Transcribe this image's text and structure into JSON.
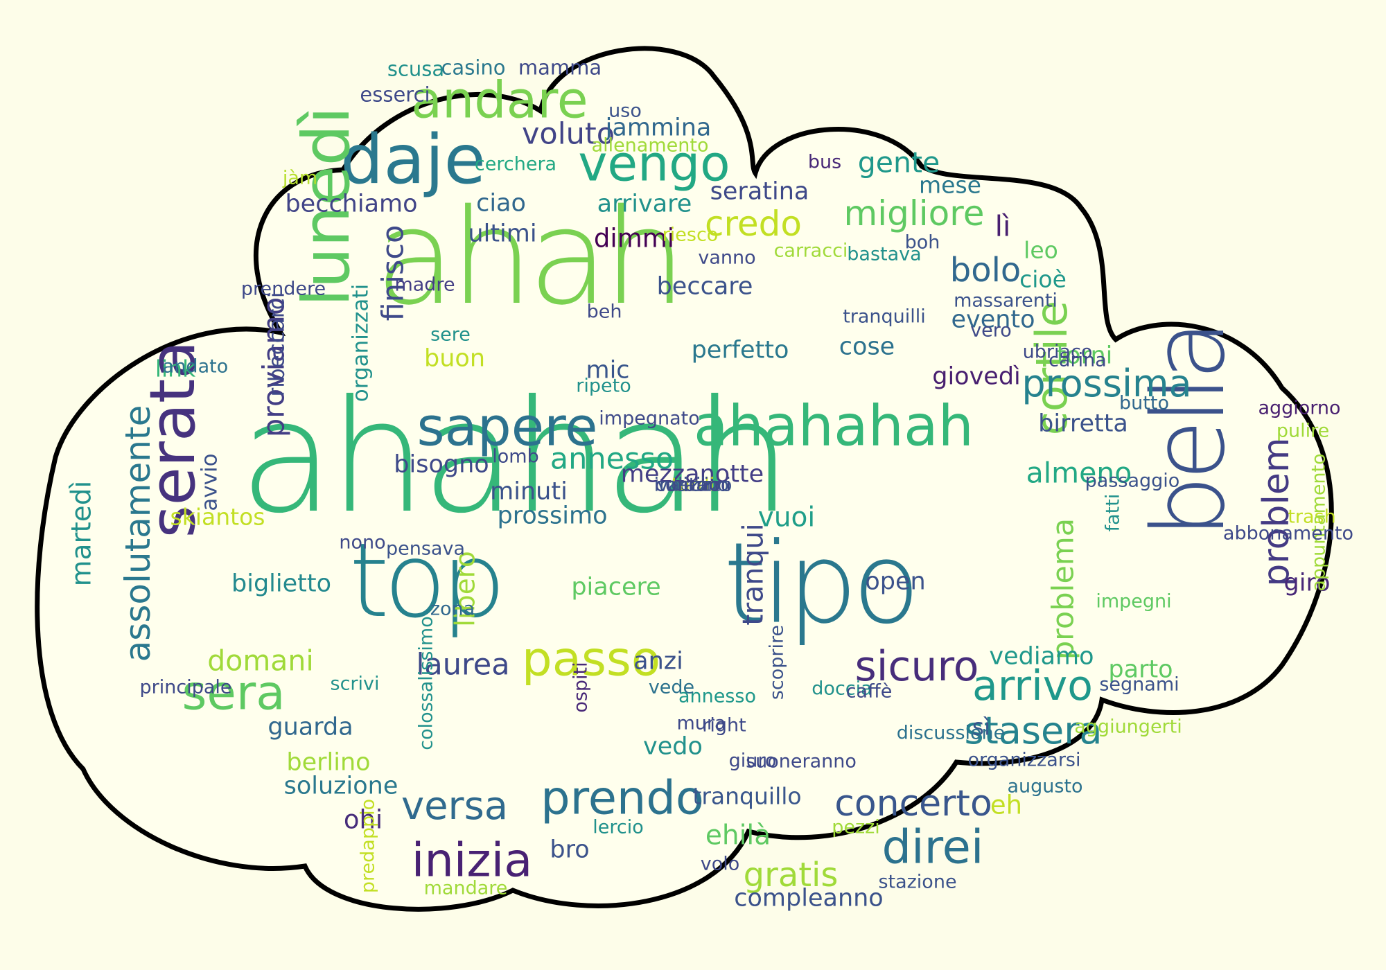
{
  "words": [
    {
      "text": "ahahah",
      "color": "#35b779",
      "weight": 100,
      "rotate": false
    },
    {
      "text": "ahah",
      "color": "#7ad151",
      "weight": 84,
      "rotate": false
    },
    {
      "text": "tipo",
      "color": "#2a788e",
      "weight": 70,
      "rotate": false
    },
    {
      "text": "top",
      "color": "#26828e",
      "weight": 64,
      "rotate": false
    },
    {
      "text": "bella",
      "color": "#3b528b",
      "weight": 62,
      "rotate": true
    },
    {
      "text": "daje",
      "color": "#2a788e",
      "weight": 40,
      "rotate": false
    },
    {
      "text": "lunedì",
      "color": "#5ec962",
      "weight": 38,
      "rotate": true
    },
    {
      "text": "serata",
      "color": "#46327e",
      "weight": 36,
      "rotate": true
    },
    {
      "text": "ahahahah",
      "color": "#35b779",
      "weight": 32,
      "rotate": false
    },
    {
      "text": "sapere",
      "color": "#2c728e",
      "weight": 30,
      "rotate": false
    },
    {
      "text": "andare",
      "color": "#7ad151",
      "weight": 28,
      "rotate": false
    },
    {
      "text": "vengo",
      "color": "#22a884",
      "weight": 27,
      "rotate": false
    },
    {
      "text": "passo",
      "color": "#c2df23",
      "weight": 26,
      "rotate": false
    },
    {
      "text": "sera",
      "color": "#5ec962",
      "weight": 26,
      "rotate": false
    },
    {
      "text": "prendo",
      "color": "#2c728e",
      "weight": 25,
      "rotate": false
    },
    {
      "text": "inizia",
      "color": "#482173",
      "weight": 25,
      "rotate": false
    },
    {
      "text": "direi",
      "color": "#2c728e",
      "weight": 25,
      "rotate": false
    },
    {
      "text": "cortile",
      "color": "#7ad151",
      "weight": 23,
      "rotate": true
    },
    {
      "text": "sicuro",
      "color": "#472d7b",
      "weight": 22,
      "rotate": false
    },
    {
      "text": "arrivo",
      "color": "#1f988b",
      "weight": 22,
      "rotate": false
    },
    {
      "text": "versa",
      "color": "#306a8e",
      "weight": 20,
      "rotate": false
    },
    {
      "text": "stasera",
      "color": "#25838e",
      "weight": 19,
      "rotate": false
    },
    {
      "text": "prossima",
      "color": "#26828e",
      "weight": 19,
      "rotate": false
    },
    {
      "text": "problem",
      "color": "#443a83",
      "weight": 18,
      "rotate": true
    },
    {
      "text": "concerto",
      "color": "#39568c",
      "weight": 18,
      "rotate": false
    },
    {
      "text": "assolutamente",
      "color": "#2a788e",
      "weight": 17,
      "rotate": true
    },
    {
      "text": "credo",
      "color": "#c2df23",
      "weight": 17,
      "rotate": false
    },
    {
      "text": "migliore",
      "color": "#5ec962",
      "weight": 17,
      "rotate": false
    },
    {
      "text": "bolo",
      "color": "#31688e",
      "weight": 16,
      "rotate": false
    },
    {
      "text": "gratis",
      "color": "#a0da39",
      "weight": 16,
      "rotate": false
    },
    {
      "text": "voluto",
      "color": "#414487",
      "weight": 14,
      "rotate": false
    },
    {
      "text": "annesso",
      "color": "#22a884",
      "weight": 14,
      "rotate": false
    },
    {
      "text": "proviamo",
      "color": "#433e85",
      "weight": 14,
      "rotate": true
    },
    {
      "text": "finisco",
      "color": "#3e4989",
      "weight": 14,
      "rotate": true
    },
    {
      "text": "problema",
      "color": "#7ad151",
      "weight": 14,
      "rotate": true
    },
    {
      "text": "laurea",
      "color": "#3e4989",
      "weight": 14,
      "rotate": false
    },
    {
      "text": "domani",
      "color": "#a0da39",
      "weight": 13,
      "rotate": false
    },
    {
      "text": "gente",
      "color": "#1f988b",
      "weight": 13,
      "rotate": false
    },
    {
      "text": "lì",
      "color": "#481f70",
      "weight": 13,
      "rotate": false
    },
    {
      "text": "almeno",
      "color": "#22a884",
      "weight": 13,
      "rotate": false
    },
    {
      "text": "tranqui",
      "color": "#3e4989",
      "weight": 13,
      "rotate": true
    },
    {
      "text": "libero",
      "color": "#a0da39",
      "weight": 12,
      "rotate": true
    },
    {
      "text": "vuoi",
      "color": "#1f9e89",
      "weight": 12,
      "rotate": false
    },
    {
      "text": "ehilà",
      "color": "#5ec962",
      "weight": 12,
      "rotate": false
    },
    {
      "text": "martedì",
      "color": "#21918c",
      "weight": 12,
      "rotate": true
    },
    {
      "text": "eh",
      "color": "#c2df23",
      "weight": 11,
      "rotate": false
    },
    {
      "text": "ohi",
      "color": "#472d7b",
      "weight": 11,
      "rotate": false
    },
    {
      "text": "dimmi",
      "color": "#440154",
      "weight": 11,
      "rotate": false
    },
    {
      "text": "mezzanotte",
      "color": "#433e85",
      "weight": 10,
      "rotate": false
    },
    {
      "text": "minuti",
      "color": "#3b528b",
      "weight": 10,
      "rotate": false
    },
    {
      "text": "prossimo",
      "color": "#2c728e",
      "weight": 10,
      "rotate": false
    },
    {
      "text": "giro",
      "color": "#482878",
      "weight": 10,
      "rotate": false
    },
    {
      "text": "ciao",
      "color": "#31688e",
      "weight": 10,
      "rotate": false
    },
    {
      "text": "seratina",
      "color": "#3e4989",
      "weight": 10,
      "rotate": false
    },
    {
      "text": "jammina",
      "color": "#31688e",
      "weight": 10,
      "rotate": false
    },
    {
      "text": "arrivare",
      "color": "#21918c",
      "weight": 10,
      "rotate": false
    },
    {
      "text": "becchiamo",
      "color": "#414487",
      "weight": 10,
      "rotate": false
    },
    {
      "text": "ultimi",
      "color": "#3b528b",
      "weight": 10,
      "rotate": false
    },
    {
      "text": "beccare",
      "color": "#3b528b",
      "weight": 10,
      "rotate": false
    },
    {
      "text": "guarda",
      "color": "#31688e",
      "weight": 10,
      "rotate": false
    },
    {
      "text": "berlino",
      "color": "#a0da39",
      "weight": 10,
      "rotate": false
    },
    {
      "text": "soluzione",
      "color": "#2a788e",
      "weight": 10,
      "rotate": false
    },
    {
      "text": "biglietto",
      "color": "#23898e",
      "weight": 10,
      "rotate": false
    },
    {
      "text": "piacere",
      "color": "#5ec962",
      "weight": 10,
      "rotate": false
    },
    {
      "text": "open",
      "color": "#3b528b",
      "weight": 10,
      "rotate": false
    },
    {
      "text": "vedo",
      "color": "#21918c",
      "weight": 10,
      "rotate": false
    },
    {
      "text": "anzi",
      "color": "#3b528b",
      "weight": 10,
      "rotate": false
    },
    {
      "text": "bro",
      "color": "#3b528b",
      "weight": 10,
      "rotate": false
    },
    {
      "text": "compleanno",
      "color": "#3b528b",
      "weight": 10,
      "rotate": false
    },
    {
      "text": "mic",
      "color": "#39568c",
      "weight": 10,
      "rotate": false
    },
    {
      "text": "buon",
      "color": "#c2df23",
      "weight": 10,
      "rotate": false
    },
    {
      "text": "bisogno",
      "color": "#3e4989",
      "weight": 10,
      "rotate": false
    },
    {
      "text": "perfetto",
      "color": "#2a788e",
      "weight": 10,
      "rotate": false
    },
    {
      "text": "cose",
      "color": "#2c728e",
      "weight": 10,
      "rotate": false
    },
    {
      "text": "giovedì",
      "color": "#481f70",
      "weight": 10,
      "rotate": false
    },
    {
      "text": "evento",
      "color": "#31688e",
      "weight": 10,
      "rotate": false
    },
    {
      "text": "torni",
      "color": "#5ec962",
      "weight": 10,
      "rotate": false
    },
    {
      "text": "birretta",
      "color": "#3b528b",
      "weight": 10,
      "rotate": false
    },
    {
      "text": "vediamo",
      "color": "#1f988b",
      "weight": 10,
      "rotate": false
    },
    {
      "text": "parto",
      "color": "#5ec962",
      "weight": 10,
      "rotate": false
    },
    {
      "text": "mese",
      "color": "#2a788e",
      "weight": 9,
      "rotate": false
    },
    {
      "text": "leo",
      "color": "#5ec962",
      "weight": 9,
      "rotate": false
    },
    {
      "text": "cioè",
      "color": "#1f988b",
      "weight": 9,
      "rotate": false
    },
    {
      "text": "link",
      "color": "#35b779",
      "weight": 9,
      "rotate": false
    },
    {
      "text": "skiantos",
      "color": "#c2df23",
      "weight": 9,
      "rotate": false
    },
    {
      "text": "sì",
      "color": "#39568c",
      "weight": 9,
      "rotate": false
    },
    {
      "text": "tranquillo",
      "color": "#39568c",
      "weight": 9,
      "rotate": false
    },
    {
      "text": "organizzati",
      "color": "#21918c",
      "weight": 8,
      "rotate": true
    },
    {
      "text": "ribeccarci",
      "color": "#3e4989",
      "weight": 8,
      "rotate": true
    },
    {
      "text": "avvio",
      "color": "#3b528b",
      "weight": 8,
      "rotate": true
    },
    {
      "text": "scusa",
      "color": "#21918c",
      "weight": 7,
      "rotate": false
    },
    {
      "text": "casino",
      "color": "#2a788e",
      "weight": 7,
      "rotate": false
    },
    {
      "text": "mamma",
      "color": "#3e4989",
      "weight": 7,
      "rotate": false
    },
    {
      "text": "esserci",
      "color": "#3e4989",
      "weight": 7,
      "rotate": false
    },
    {
      "text": "annesso",
      "color": "#1f988b",
      "weight": 6,
      "rotate": false
    },
    {
      "text": "uso",
      "color": "#3b528b",
      "weight": 6,
      "rotate": false
    },
    {
      "text": "allenamento",
      "color": "#a0da39",
      "weight": 6,
      "rotate": false
    },
    {
      "text": "cerchera",
      "color": "#22a884",
      "weight": 6,
      "rotate": false
    },
    {
      "text": "bus",
      "color": "#482878",
      "weight": 6,
      "rotate": false
    },
    {
      "text": "jàm",
      "color": "#b5de2b",
      "weight": 6,
      "rotate": false
    },
    {
      "text": "riesco",
      "color": "#c2df23",
      "weight": 6,
      "rotate": false
    },
    {
      "text": "vanno",
      "color": "#3e4989",
      "weight": 6,
      "rotate": false
    },
    {
      "text": "carracci",
      "color": "#a0da39",
      "weight": 6,
      "rotate": false
    },
    {
      "text": "boh",
      "color": "#3b528b",
      "weight": 6,
      "rotate": false
    },
    {
      "text": "bastava",
      "color": "#21918c",
      "weight": 6,
      "rotate": false
    },
    {
      "text": "prendere",
      "color": "#3e4989",
      "weight": 6,
      "rotate": false
    },
    {
      "text": "madre",
      "color": "#433e85",
      "weight": 6,
      "rotate": false
    },
    {
      "text": "beh",
      "color": "#3e4989",
      "weight": 6,
      "rotate": false
    },
    {
      "text": "sere",
      "color": "#21918c",
      "weight": 6,
      "rotate": false
    },
    {
      "text": "tranquilli",
      "color": "#3b528b",
      "weight": 6,
      "rotate": false
    },
    {
      "text": "massarenti",
      "color": "#3b528b",
      "weight": 6,
      "rotate": false
    },
    {
      "text": "vero",
      "color": "#3e4989",
      "weight": 6,
      "rotate": false
    },
    {
      "text": "ubriaco",
      "color": "#3e4989",
      "weight": 6,
      "rotate": false
    },
    {
      "text": "carina",
      "color": "#3e4989",
      "weight": 6,
      "rotate": false
    },
    {
      "text": "andato",
      "color": "#2c728e",
      "weight": 6,
      "rotate": false
    },
    {
      "text": "ripeto",
      "color": "#21918c",
      "weight": 6,
      "rotate": false
    },
    {
      "text": "impegnato",
      "color": "#3e4989",
      "weight": 6,
      "rotate": false
    },
    {
      "text": "aggiorno",
      "color": "#481f70",
      "weight": 6,
      "rotate": false
    },
    {
      "text": "lomb",
      "color": "#3e4989",
      "weight": 6,
      "rotate": false
    },
    {
      "text": "butto",
      "color": "#31688e",
      "weight": 6,
      "rotate": false
    },
    {
      "text": "pulire",
      "color": "#a0da39",
      "weight": 6,
      "rotate": false
    },
    {
      "text": "passaggio",
      "color": "#3b528b",
      "weight": 6,
      "rotate": false
    },
    {
      "text": "trash",
      "color": "#c2df23",
      "weight": 6,
      "rotate": false
    },
    {
      "text": "nono",
      "color": "#3e4989",
      "weight": 6,
      "rotate": false
    },
    {
      "text": "pensava",
      "color": "#3b528b",
      "weight": 6,
      "rotate": false
    },
    {
      "text": "zona",
      "color": "#31688e",
      "weight": 6,
      "rotate": false
    },
    {
      "text": "fatti",
      "color": "#21918c",
      "weight": 6,
      "rotate": true
    },
    {
      "text": "appuntamento",
      "color": "#a0da39",
      "weight": 6,
      "rotate": true
    },
    {
      "text": "impegni",
      "color": "#5ec962",
      "weight": 6,
      "rotate": false
    },
    {
      "text": "abbonamento",
      "color": "#3e4989",
      "weight": 6,
      "rotate": false
    },
    {
      "text": "colossalissimo",
      "color": "#21918c",
      "weight": 6,
      "rotate": true
    },
    {
      "text": "scrivi",
      "color": "#21918c",
      "weight": 6,
      "rotate": false
    },
    {
      "text": "vede",
      "color": "#2c728e",
      "weight": 6,
      "rotate": false
    },
    {
      "text": "scoprire",
      "color": "#3b528b",
      "weight": 6,
      "rotate": true
    },
    {
      "text": "segnami",
      "color": "#3b528b",
      "weight": 6,
      "rotate": false
    },
    {
      "text": "principale",
      "color": "#3e4989",
      "weight": 6,
      "rotate": false
    },
    {
      "text": "ospiti",
      "color": "#482878",
      "weight": 6,
      "rotate": true
    },
    {
      "text": "doccia",
      "color": "#21918c",
      "weight": 6,
      "rotate": false
    },
    {
      "text": "caffè",
      "color": "#3e4989",
      "weight": 6,
      "rotate": false
    },
    {
      "text": "mura",
      "color": "#3e4989",
      "weight": 6,
      "rotate": false
    },
    {
      "text": "right",
      "color": "#3e4989",
      "weight": 6,
      "rotate": false
    },
    {
      "text": "aggiungerti",
      "color": "#a0da39",
      "weight": 6,
      "rotate": false
    },
    {
      "text": "discussione",
      "color": "#2c728e",
      "weight": 6,
      "rotate": false
    },
    {
      "text": "giuro",
      "color": "#3e4989",
      "weight": 6,
      "rotate": false
    },
    {
      "text": "suoneranno",
      "color": "#3e4989",
      "weight": 6,
      "rotate": false
    },
    {
      "text": "organizzarsi",
      "color": "#3b528b",
      "weight": 6,
      "rotate": false
    },
    {
      "text": "augusto",
      "color": "#2c728e",
      "weight": 6,
      "rotate": false
    },
    {
      "text": "lercio",
      "color": "#21918c",
      "weight": 6,
      "rotate": false
    },
    {
      "text": "pezzi",
      "color": "#a0da39",
      "weight": 6,
      "rotate": false
    },
    {
      "text": "predappio",
      "color": "#c2df23",
      "weight": 6,
      "rotate": true
    },
    {
      "text": "volo",
      "color": "#3e4989",
      "weight": 6,
      "rotate": false
    },
    {
      "text": "stazione",
      "color": "#3b528b",
      "weight": 6,
      "rotate": false
    },
    {
      "text": "mandare",
      "color": "#a0da39",
      "weight": 6,
      "rotate": false
    },
    {
      "text": "vaccino",
      "color": "#3b528b",
      "weight": 6,
      "rotate": false
    },
    {
      "text": "tardi",
      "color": "#c2df23",
      "weight": 6,
      "rotate": false
    },
    {
      "text": "azz",
      "color": "#3b528b",
      "weight": 6,
      "rotate": false
    },
    {
      "text": "indirizzo",
      "color": "#3b528b",
      "weight": 6,
      "rotate": false
    },
    {
      "text": "contami",
      "color": "#3e4989",
      "weight": 6,
      "rotate": false
    },
    {
      "text": "orario",
      "color": "#3e4989",
      "weight": 6,
      "rotate": false
    }
  ]
}
